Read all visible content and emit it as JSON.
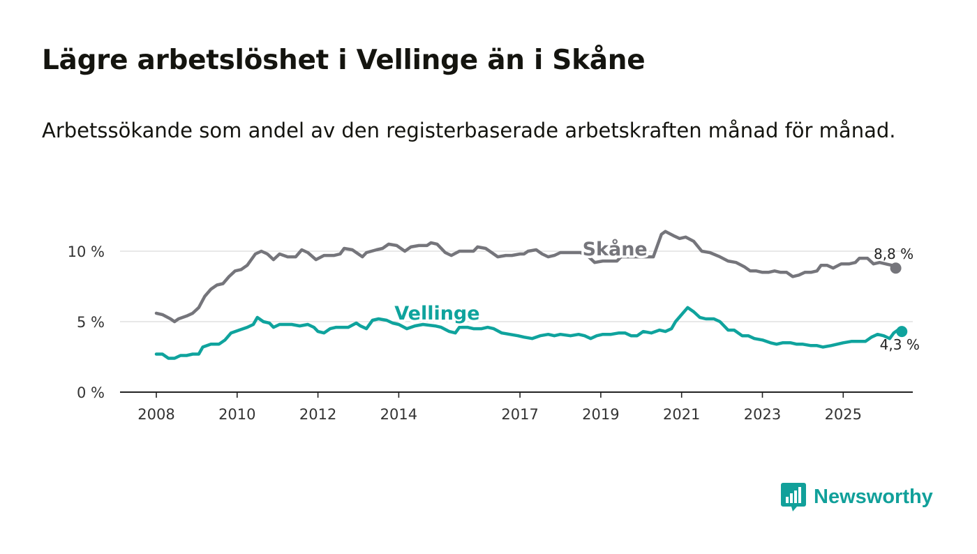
{
  "header": {
    "title": "Lägre arbetslöshet i Vellinge än i Skåne",
    "subtitle": "Arbetssökande som andel av den registerbaserade arbetskraften månad för månad."
  },
  "brand": {
    "name": "Newsworthy",
    "icon": "newsworthy-logo-icon",
    "color": "#11a09a"
  },
  "chart_data": {
    "type": "line",
    "title": "Lägre arbetslöshet i Vellinge än i Skåne",
    "subtitle": "Arbetssökande som andel av den registerbaserade arbetskraften månad för månad.",
    "xlabel": "",
    "ylabel": "",
    "xlim": [
      2007.9,
      2026.5
    ],
    "ylim": [
      0,
      12
    ],
    "grid": true,
    "x_ticks": [
      {
        "value": 2008,
        "label": "2008"
      },
      {
        "value": 2010,
        "label": "2010"
      },
      {
        "value": 2012,
        "label": "2012"
      },
      {
        "value": 2014,
        "label": "2014"
      },
      {
        "value": 2017,
        "label": "2017"
      },
      {
        "value": 2019,
        "label": "2019"
      },
      {
        "value": 2021,
        "label": "2021"
      },
      {
        "value": 2023,
        "label": "2023"
      },
      {
        "value": 2025,
        "label": "2025"
      }
    ],
    "y_ticks": [
      {
        "value": 0,
        "label": "0 %"
      },
      {
        "value": 5,
        "label": "5 %"
      },
      {
        "value": 10,
        "label": "10 %"
      }
    ],
    "series": [
      {
        "name": "Skåne",
        "color": "#75757b",
        "end_label": "8,8 %",
        "label_pos": {
          "x": 2019.35,
          "y": 9.7
        },
        "points": [
          [
            2008.0,
            5.6
          ],
          [
            2008.15,
            5.5
          ],
          [
            2008.35,
            5.2
          ],
          [
            2008.45,
            5.0
          ],
          [
            2008.55,
            5.2
          ],
          [
            2008.75,
            5.4
          ],
          [
            2008.9,
            5.6
          ],
          [
            2009.05,
            6.0
          ],
          [
            2009.2,
            6.8
          ],
          [
            2009.35,
            7.3
          ],
          [
            2009.5,
            7.6
          ],
          [
            2009.65,
            7.7
          ],
          [
            2009.8,
            8.2
          ],
          [
            2009.95,
            8.6
          ],
          [
            2010.1,
            8.7
          ],
          [
            2010.25,
            9.0
          ],
          [
            2010.45,
            9.8
          ],
          [
            2010.6,
            10.0
          ],
          [
            2010.75,
            9.8
          ],
          [
            2010.9,
            9.4
          ],
          [
            2011.05,
            9.8
          ],
          [
            2011.25,
            9.6
          ],
          [
            2011.45,
            9.6
          ],
          [
            2011.6,
            10.1
          ],
          [
            2011.75,
            9.9
          ],
          [
            2011.95,
            9.4
          ],
          [
            2012.15,
            9.7
          ],
          [
            2012.4,
            9.7
          ],
          [
            2012.55,
            9.8
          ],
          [
            2012.65,
            10.2
          ],
          [
            2012.85,
            10.1
          ],
          [
            2013.0,
            9.8
          ],
          [
            2013.1,
            9.6
          ],
          [
            2013.2,
            9.9
          ],
          [
            2013.45,
            10.1
          ],
          [
            2013.6,
            10.2
          ],
          [
            2013.75,
            10.5
          ],
          [
            2013.95,
            10.4
          ],
          [
            2014.15,
            10.0
          ],
          [
            2014.3,
            10.3
          ],
          [
            2014.5,
            10.4
          ],
          [
            2014.7,
            10.4
          ],
          [
            2014.8,
            10.6
          ],
          [
            2014.95,
            10.5
          ],
          [
            2015.15,
            9.9
          ],
          [
            2015.3,
            9.7
          ],
          [
            2015.5,
            10.0
          ],
          [
            2015.7,
            10.0
          ],
          [
            2015.85,
            10.0
          ],
          [
            2015.95,
            10.3
          ],
          [
            2016.15,
            10.2
          ],
          [
            2016.3,
            9.9
          ],
          [
            2016.45,
            9.6
          ],
          [
            2016.65,
            9.7
          ],
          [
            2016.8,
            9.7
          ],
          [
            2017.0,
            9.8
          ],
          [
            2017.1,
            9.8
          ],
          [
            2017.2,
            10.0
          ],
          [
            2017.4,
            10.1
          ],
          [
            2017.55,
            9.8
          ],
          [
            2017.7,
            9.6
          ],
          [
            2017.85,
            9.7
          ],
          [
            2018.0,
            9.9
          ],
          [
            2018.3,
            9.9
          ],
          [
            2018.5,
            9.9
          ],
          [
            2018.7,
            9.6
          ],
          [
            2018.85,
            9.2
          ],
          [
            2019.05,
            9.3
          ],
          [
            2019.25,
            9.3
          ],
          [
            2019.4,
            9.3
          ],
          [
            2019.5,
            9.6
          ],
          [
            2020.3,
            9.6
          ],
          [
            2020.4,
            10.4
          ],
          [
            2020.5,
            11.2
          ],
          [
            2020.6,
            11.4
          ],
          [
            2020.8,
            11.1
          ],
          [
            2020.95,
            10.9
          ],
          [
            2021.1,
            11.0
          ],
          [
            2021.3,
            10.7
          ],
          [
            2021.5,
            10.0
          ],
          [
            2021.7,
            9.9
          ],
          [
            2021.95,
            9.6
          ],
          [
            2022.15,
            9.3
          ],
          [
            2022.35,
            9.2
          ],
          [
            2022.55,
            8.9
          ],
          [
            2022.7,
            8.6
          ],
          [
            2022.85,
            8.6
          ],
          [
            2023.0,
            8.5
          ],
          [
            2023.15,
            8.5
          ],
          [
            2023.3,
            8.6
          ],
          [
            2023.45,
            8.5
          ],
          [
            2023.6,
            8.5
          ],
          [
            2023.75,
            8.2
          ],
          [
            2023.9,
            8.3
          ],
          [
            2024.05,
            8.5
          ],
          [
            2024.2,
            8.5
          ],
          [
            2024.35,
            8.6
          ],
          [
            2024.45,
            9.0
          ],
          [
            2024.6,
            9.0
          ],
          [
            2024.75,
            8.8
          ],
          [
            2024.95,
            9.1
          ],
          [
            2025.15,
            9.1
          ],
          [
            2025.3,
            9.2
          ],
          [
            2025.4,
            9.5
          ],
          [
            2025.6,
            9.5
          ],
          [
            2025.75,
            9.1
          ],
          [
            2025.9,
            9.2
          ],
          [
            2026.05,
            9.1
          ],
          [
            2026.2,
            9.0
          ],
          [
            2026.3,
            8.8
          ]
        ]
      },
      {
        "name": "Vellinge",
        "color": "#0fa39d",
        "end_label": "4,3 %",
        "label_pos": {
          "x": 2014.95,
          "y": 5.15
        },
        "points": [
          [
            2008.0,
            2.7
          ],
          [
            2008.15,
            2.7
          ],
          [
            2008.3,
            2.4
          ],
          [
            2008.45,
            2.4
          ],
          [
            2008.6,
            2.6
          ],
          [
            2008.75,
            2.6
          ],
          [
            2008.9,
            2.7
          ],
          [
            2009.05,
            2.7
          ],
          [
            2009.15,
            3.2
          ],
          [
            2009.35,
            3.4
          ],
          [
            2009.55,
            3.4
          ],
          [
            2009.7,
            3.7
          ],
          [
            2009.85,
            4.2
          ],
          [
            2010.05,
            4.4
          ],
          [
            2010.25,
            4.6
          ],
          [
            2010.4,
            4.8
          ],
          [
            2010.5,
            5.3
          ],
          [
            2010.65,
            5.0
          ],
          [
            2010.8,
            4.9
          ],
          [
            2010.9,
            4.6
          ],
          [
            2011.05,
            4.8
          ],
          [
            2011.2,
            4.8
          ],
          [
            2011.35,
            4.8
          ],
          [
            2011.55,
            4.7
          ],
          [
            2011.75,
            4.8
          ],
          [
            2011.9,
            4.6
          ],
          [
            2012.0,
            4.3
          ],
          [
            2012.15,
            4.2
          ],
          [
            2012.3,
            4.5
          ],
          [
            2012.45,
            4.6
          ],
          [
            2012.6,
            4.6
          ],
          [
            2012.75,
            4.6
          ],
          [
            2012.95,
            4.9
          ],
          [
            2013.05,
            4.7
          ],
          [
            2013.2,
            4.5
          ],
          [
            2013.35,
            5.1
          ],
          [
            2013.5,
            5.2
          ],
          [
            2013.7,
            5.1
          ],
          [
            2013.85,
            4.9
          ],
          [
            2014.0,
            4.8
          ],
          [
            2014.2,
            4.5
          ],
          [
            2014.4,
            4.7
          ],
          [
            2014.6,
            4.8
          ],
          [
            2014.9,
            4.7
          ],
          [
            2015.05,
            4.6
          ],
          [
            2015.25,
            4.3
          ],
          [
            2015.4,
            4.2
          ],
          [
            2015.5,
            4.6
          ],
          [
            2015.7,
            4.6
          ],
          [
            2015.85,
            4.5
          ],
          [
            2016.05,
            4.5
          ],
          [
            2016.2,
            4.6
          ],
          [
            2016.35,
            4.5
          ],
          [
            2016.55,
            4.2
          ],
          [
            2016.75,
            4.1
          ],
          [
            2016.95,
            4.0
          ],
          [
            2017.1,
            3.9
          ],
          [
            2017.3,
            3.8
          ],
          [
            2017.5,
            4.0
          ],
          [
            2017.7,
            4.1
          ],
          [
            2017.85,
            4.0
          ],
          [
            2018.0,
            4.1
          ],
          [
            2018.25,
            4.0
          ],
          [
            2018.45,
            4.1
          ],
          [
            2018.6,
            4.0
          ],
          [
            2018.75,
            3.8
          ],
          [
            2018.9,
            4.0
          ],
          [
            2019.05,
            4.1
          ],
          [
            2019.25,
            4.1
          ],
          [
            2019.45,
            4.2
          ],
          [
            2019.6,
            4.2
          ],
          [
            2019.75,
            4.0
          ],
          [
            2019.9,
            4.0
          ],
          [
            2020.05,
            4.3
          ],
          [
            2020.25,
            4.2
          ],
          [
            2020.45,
            4.4
          ],
          [
            2020.6,
            4.3
          ],
          [
            2020.75,
            4.5
          ],
          [
            2020.85,
            5.0
          ],
          [
            2021.0,
            5.5
          ],
          [
            2021.15,
            6.0
          ],
          [
            2021.3,
            5.7
          ],
          [
            2021.45,
            5.3
          ],
          [
            2021.6,
            5.2
          ],
          [
            2021.8,
            5.2
          ],
          [
            2021.95,
            5.0
          ],
          [
            2022.15,
            4.4
          ],
          [
            2022.3,
            4.4
          ],
          [
            2022.5,
            4.0
          ],
          [
            2022.65,
            4.0
          ],
          [
            2022.8,
            3.8
          ],
          [
            2023.0,
            3.7
          ],
          [
            2023.2,
            3.5
          ],
          [
            2023.35,
            3.4
          ],
          [
            2023.5,
            3.5
          ],
          [
            2023.7,
            3.5
          ],
          [
            2023.85,
            3.4
          ],
          [
            2024.0,
            3.4
          ],
          [
            2024.2,
            3.3
          ],
          [
            2024.35,
            3.3
          ],
          [
            2024.5,
            3.2
          ],
          [
            2024.7,
            3.3
          ],
          [
            2024.85,
            3.4
          ],
          [
            2025.0,
            3.5
          ],
          [
            2025.2,
            3.6
          ],
          [
            2025.4,
            3.6
          ],
          [
            2025.55,
            3.6
          ],
          [
            2025.7,
            3.9
          ],
          [
            2025.85,
            4.1
          ],
          [
            2026.0,
            4.0
          ],
          [
            2026.15,
            3.8
          ],
          [
            2026.25,
            4.2
          ],
          [
            2026.35,
            4.4
          ],
          [
            2026.45,
            4.3
          ]
        ]
      }
    ]
  }
}
